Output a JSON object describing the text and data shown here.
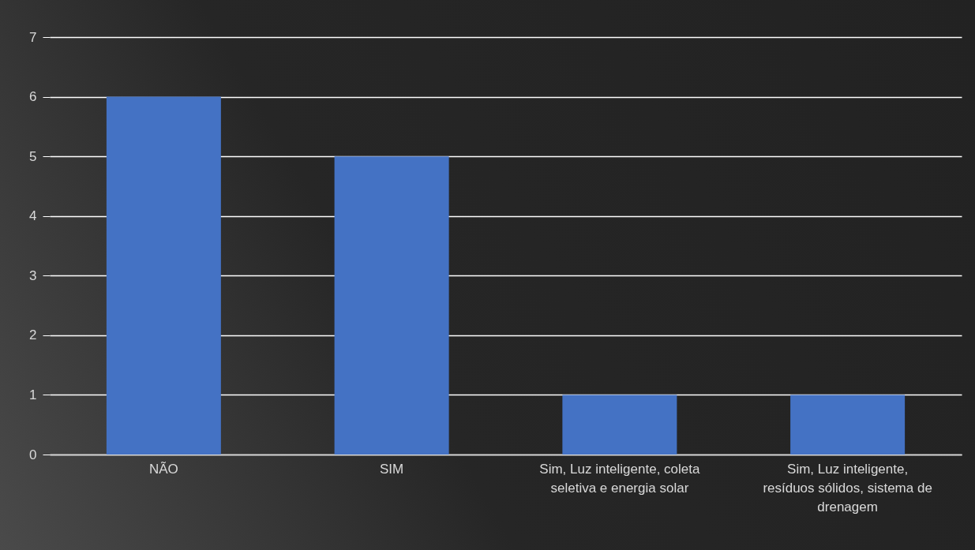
{
  "chart_data": {
    "type": "bar",
    "categories": [
      "NÃO",
      "SIM",
      "Sim, Luz inteligente, coleta seletiva e energia solar",
      "Sim, Luz inteligente, resíduos sólidos, sistema de drenagem"
    ],
    "values": [
      6,
      5,
      1,
      1
    ],
    "color": "#4472c4",
    "ylim": [
      0,
      7
    ],
    "yticks": [
      0,
      1,
      2,
      3,
      4,
      5,
      6,
      7
    ],
    "grid": "y"
  }
}
